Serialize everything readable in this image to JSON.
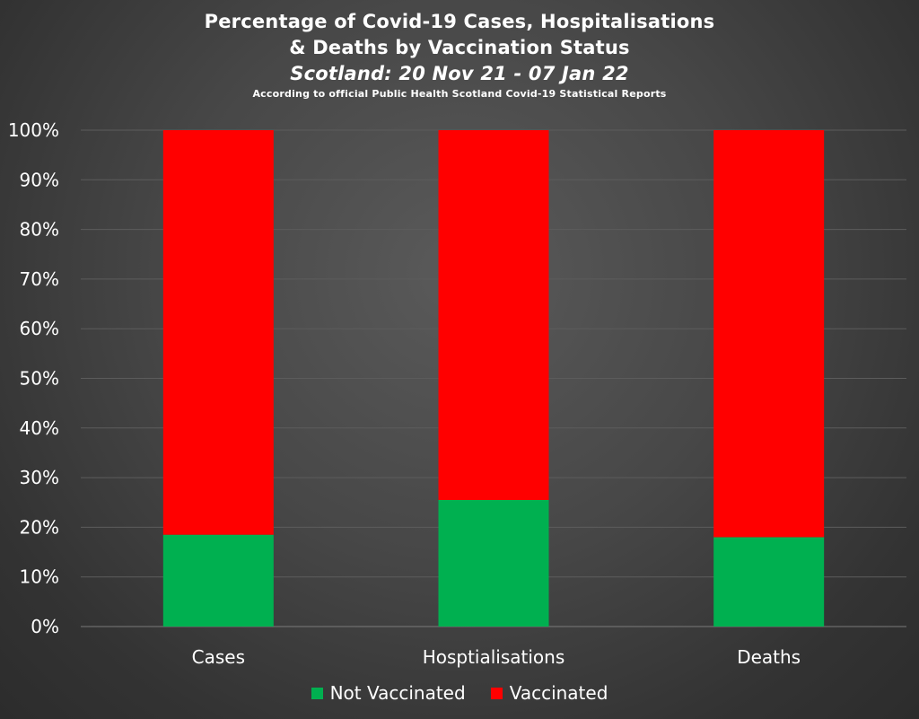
{
  "chart_data": {
    "type": "bar",
    "stacked": true,
    "percent": true,
    "title": "Percentage of Covid-19 Cases, Hospitalisations",
    "title_line2": "& Deaths by Vaccination Status",
    "subtitle": "Scotland: 20 Nov 21 - 07 Jan 22",
    "source_note": "According to official Public Health Scotland Covid-19 Statistical Reports",
    "categories": [
      "Cases",
      "Hosptialisations",
      "Deaths"
    ],
    "series": [
      {
        "name": "Not Vaccinated",
        "color": "#00b050",
        "values": [
          18.5,
          25.5,
          18.0
        ]
      },
      {
        "name": "Vaccinated",
        "color": "#ff0000",
        "values": [
          81.5,
          74.5,
          82.0
        ]
      }
    ],
    "ylim": [
      0,
      100
    ],
    "yticks": [
      "0%",
      "10%",
      "20%",
      "30%",
      "40%",
      "50%",
      "60%",
      "70%",
      "80%",
      "90%",
      "100%"
    ],
    "grid": true,
    "legend_position": "bottom"
  }
}
